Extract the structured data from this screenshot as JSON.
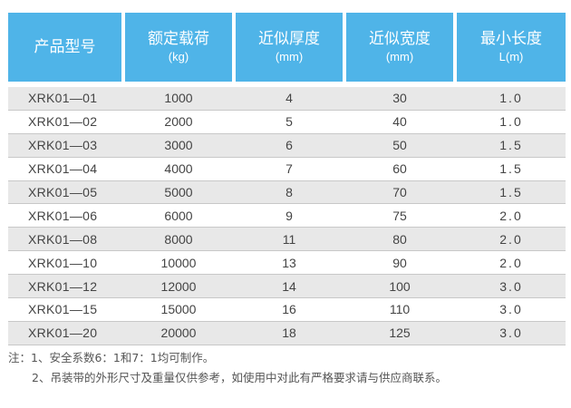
{
  "table": {
    "headers": [
      {
        "title": "产品型号",
        "unit": ""
      },
      {
        "title": "额定载荷",
        "unit": "(kg)"
      },
      {
        "title": "近似厚度",
        "unit": "(mm)"
      },
      {
        "title": "近似宽度",
        "unit": "(mm)"
      },
      {
        "title": "最小长度",
        "unit": "L(m)"
      }
    ],
    "rows": [
      [
        "XRK01—01",
        "1000",
        "4",
        "30",
        "1.0"
      ],
      [
        "XRK01—02",
        "2000",
        "5",
        "40",
        "1.0"
      ],
      [
        "XRK01—03",
        "3000",
        "6",
        "50",
        "1.5"
      ],
      [
        "XRK01—04",
        "4000",
        "7",
        "60",
        "1.5"
      ],
      [
        "XRK01—05",
        "5000",
        "8",
        "70",
        "1.5"
      ],
      [
        "XRK01—06",
        "6000",
        "9",
        "75",
        "2.0"
      ],
      [
        "XRK01—08",
        "8000",
        "11",
        "80",
        "2.0"
      ],
      [
        "XRK01—10",
        "10000",
        "13",
        "90",
        "2.0"
      ],
      [
        "XRK01—12",
        "12000",
        "14",
        "100",
        "3.0"
      ],
      [
        "XRK01—15",
        "15000",
        "16",
        "110",
        "3.0"
      ],
      [
        "XRK01—20",
        "20000",
        "18",
        "125",
        "3.0"
      ]
    ],
    "header_color": "#4fb4e8",
    "stripe_color": "#e8e8e8"
  },
  "notes": {
    "line1": "注：1、安全系数6：1和7：1均可制作。",
    "line2": "2、吊装带的外形尺寸及重量仅供参考，如使用中对此有严格要求请与供应商联系。"
  }
}
